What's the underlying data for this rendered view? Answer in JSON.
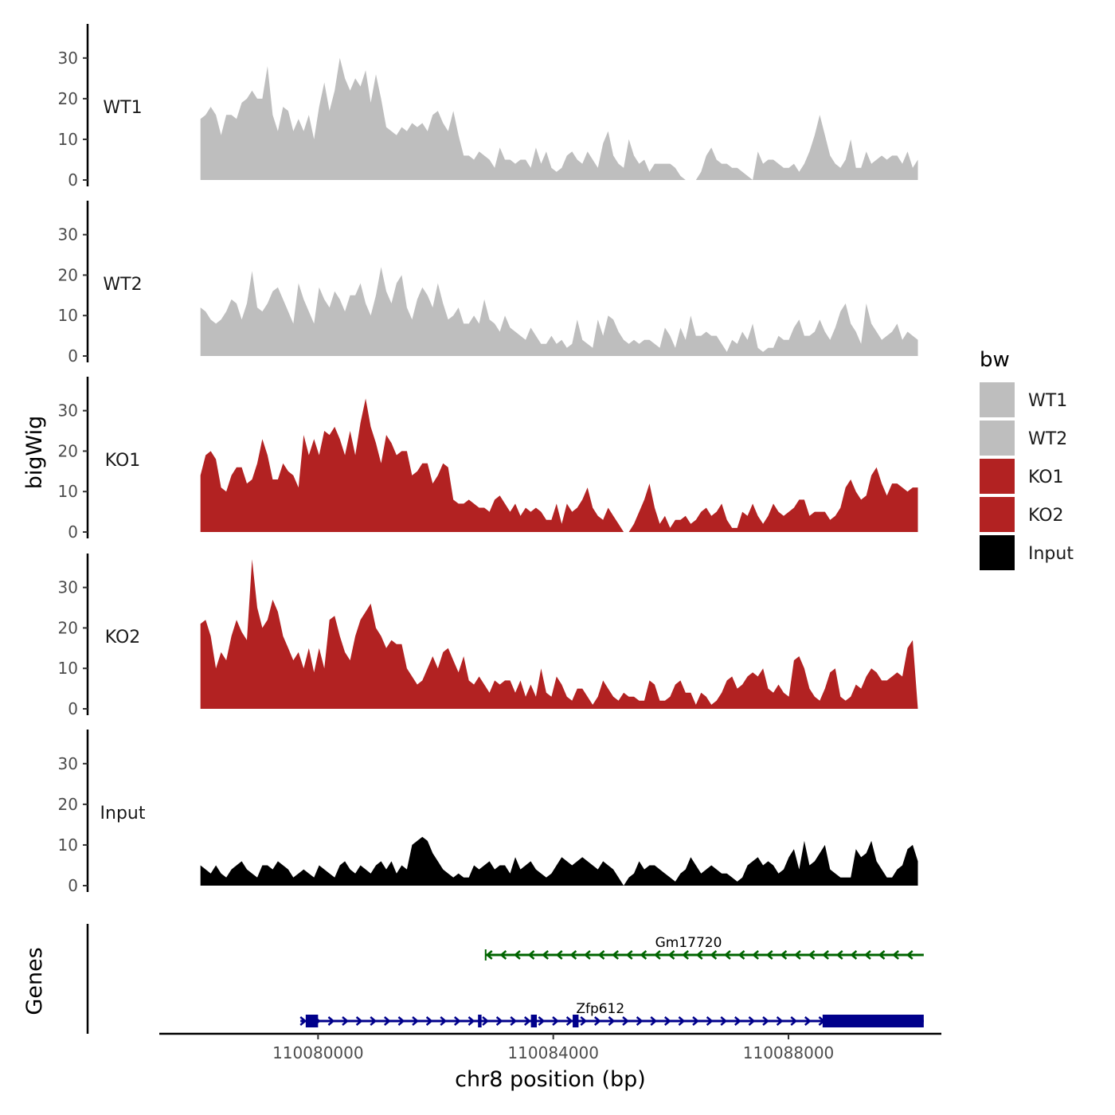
{
  "chart_data": {
    "type": "area",
    "title": "",
    "xlabel": "chr8 position (bp)",
    "ylabel": "bigWig",
    "genes_label": "Genes",
    "xlim": [
      110077300,
      110090600
    ],
    "x_start": 110078000,
    "x_end": 110090200,
    "ylim": [
      0,
      38
    ],
    "yticks": [
      0,
      10,
      20,
      30
    ],
    "xticks": [
      110080000,
      110084000,
      110088000
    ],
    "xtick_labels": [
      "110080000",
      "110084000",
      "110088000"
    ],
    "legend": {
      "title": "bw",
      "position": "right",
      "entries": [
        {
          "label": "WT1",
          "color": "#bebebe"
        },
        {
          "label": "WT2",
          "color": "#bebebe"
        },
        {
          "label": "KO1",
          "color": "#b22222"
        },
        {
          "label": "KO2",
          "color": "#b22222"
        },
        {
          "label": "Input",
          "color": "#000000"
        }
      ]
    },
    "series": [
      {
        "name": "WT1",
        "color": "#bebebe",
        "values": [
          15,
          16,
          18,
          16,
          11,
          16,
          16,
          15,
          19,
          20,
          22,
          20,
          20,
          28,
          16,
          12,
          18,
          17,
          12,
          15,
          12,
          16,
          10,
          18,
          24,
          17,
          22,
          30,
          25,
          22,
          25,
          23,
          27,
          19,
          26,
          20,
          13,
          12,
          11,
          13,
          12,
          14,
          13,
          14,
          12,
          16,
          17,
          14,
          12,
          17,
          11,
          6,
          6,
          5,
          7,
          6,
          5,
          3,
          8,
          5,
          5,
          4,
          5,
          5,
          3,
          8,
          4,
          7,
          3,
          2,
          3,
          6,
          7,
          5,
          4,
          7,
          5,
          3,
          9,
          12,
          6,
          4,
          3,
          10,
          6,
          4,
          5,
          2,
          4,
          4,
          4,
          4,
          3,
          1,
          0,
          0,
          0,
          2,
          6,
          8,
          5,
          4,
          4,
          3,
          3,
          2,
          1,
          0,
          7,
          4,
          5,
          5,
          4,
          3,
          3,
          4,
          2,
          4,
          7,
          11,
          16,
          11,
          6,
          4,
          3,
          5,
          10,
          3,
          3,
          7,
          4,
          5,
          6,
          5,
          6,
          6,
          4,
          7,
          3,
          5
        ]
      },
      {
        "name": "WT2",
        "color": "#bebebe",
        "values": [
          12,
          11,
          9,
          8,
          9,
          11,
          14,
          13,
          9,
          13,
          21,
          12,
          11,
          13,
          16,
          17,
          14,
          11,
          8,
          18,
          14,
          11,
          8,
          17,
          14,
          12,
          16,
          14,
          11,
          15,
          15,
          18,
          13,
          10,
          15,
          22,
          16,
          13,
          18,
          20,
          12,
          9,
          14,
          17,
          15,
          12,
          18,
          13,
          9,
          10,
          12,
          8,
          8,
          10,
          8,
          14,
          9,
          8,
          6,
          10,
          7,
          6,
          5,
          4,
          7,
          5,
          3,
          3,
          5,
          3,
          4,
          2,
          3,
          9,
          4,
          3,
          2,
          9,
          5,
          10,
          9,
          6,
          4,
          3,
          4,
          3,
          4,
          4,
          3,
          2,
          7,
          5,
          2,
          7,
          4,
          10,
          5,
          5,
          6,
          5,
          5,
          3,
          1,
          4,
          3,
          6,
          4,
          8,
          2,
          1,
          2,
          2,
          5,
          4,
          4,
          7,
          9,
          5,
          5,
          6,
          9,
          6,
          4,
          7,
          11,
          13,
          8,
          6,
          3,
          13,
          8,
          6,
          4,
          5,
          6,
          8,
          4,
          6,
          5,
          4
        ]
      },
      {
        "name": "KO1",
        "color": "#b22222",
        "values": [
          14,
          19,
          20,
          18,
          11,
          10,
          14,
          16,
          16,
          12,
          13,
          17,
          23,
          19,
          13,
          13,
          17,
          15,
          14,
          11,
          24,
          19,
          23,
          19,
          25,
          24,
          26,
          23,
          19,
          25,
          19,
          27,
          33,
          26,
          22,
          17,
          24,
          22,
          19,
          20,
          20,
          14,
          15,
          17,
          17,
          12,
          14,
          17,
          16,
          8,
          7,
          7,
          8,
          7,
          6,
          6,
          5,
          8,
          9,
          7,
          5,
          7,
          4,
          6,
          5,
          6,
          5,
          3,
          3,
          7,
          2,
          7,
          5,
          6,
          8,
          11,
          6,
          4,
          3,
          6,
          4,
          2,
          0,
          0,
          2,
          5,
          8,
          12,
          6,
          2,
          4,
          1,
          3,
          3,
          4,
          2,
          3,
          5,
          6,
          4,
          5,
          7,
          3,
          1,
          1,
          5,
          4,
          7,
          4,
          2,
          4,
          7,
          5,
          4,
          5,
          6,
          8,
          8,
          4,
          5,
          5,
          5,
          3,
          4,
          6,
          11,
          13,
          10,
          8,
          9,
          14,
          16,
          12,
          9,
          12,
          12,
          11,
          10,
          11,
          11
        ]
      },
      {
        "name": "KO2",
        "color": "#b22222",
        "values": [
          21,
          22,
          18,
          10,
          14,
          12,
          18,
          22,
          19,
          17,
          37,
          25,
          20,
          22,
          27,
          24,
          18,
          15,
          12,
          14,
          10,
          15,
          9,
          15,
          10,
          22,
          23,
          18,
          14,
          12,
          18,
          22,
          24,
          26,
          20,
          18,
          15,
          17,
          16,
          16,
          10,
          8,
          6,
          7,
          10,
          13,
          10,
          14,
          15,
          12,
          9,
          13,
          7,
          6,
          8,
          6,
          4,
          7,
          6,
          7,
          7,
          4,
          7,
          3,
          6,
          3,
          10,
          4,
          3,
          8,
          6,
          3,
          2,
          5,
          5,
          3,
          1,
          3,
          7,
          5,
          3,
          2,
          4,
          3,
          3,
          2,
          2,
          7,
          6,
          2,
          2,
          3,
          6,
          7,
          4,
          4,
          1,
          4,
          3,
          1,
          2,
          4,
          7,
          8,
          5,
          6,
          8,
          9,
          8,
          10,
          5,
          4,
          6,
          4,
          3,
          12,
          13,
          10,
          5,
          3,
          2,
          5,
          9,
          10,
          3,
          2,
          3,
          6,
          5,
          8,
          10,
          9,
          7,
          7,
          8,
          9,
          8,
          15,
          17,
          0
        ]
      },
      {
        "name": "Input",
        "color": "#000000",
        "values": [
          5,
          4,
          3,
          5,
          3,
          2,
          4,
          5,
          6,
          4,
          3,
          2,
          5,
          5,
          4,
          6,
          5,
          4,
          2,
          3,
          4,
          3,
          2,
          5,
          4,
          3,
          2,
          5,
          6,
          4,
          3,
          5,
          4,
          3,
          5,
          6,
          4,
          6,
          3,
          5,
          4,
          10,
          11,
          12,
          11,
          8,
          6,
          4,
          3,
          2,
          3,
          2,
          2,
          5,
          4,
          5,
          6,
          4,
          5,
          5,
          3,
          7,
          4,
          5,
          6,
          4,
          3,
          2,
          3,
          5,
          7,
          6,
          5,
          6,
          7,
          6,
          5,
          4,
          6,
          5,
          4,
          2,
          0,
          2,
          3,
          6,
          4,
          5,
          5,
          4,
          3,
          2,
          1,
          3,
          4,
          7,
          5,
          3,
          4,
          5,
          4,
          3,
          3,
          2,
          1,
          2,
          5,
          6,
          7,
          5,
          6,
          5,
          3,
          4,
          7,
          9,
          4,
          11,
          5,
          6,
          8,
          10,
          4,
          3,
          2,
          2,
          2,
          9,
          7,
          8,
          11,
          6,
          4,
          2,
          2,
          4,
          5,
          9,
          10,
          6
        ]
      }
    ],
    "genes": [
      {
        "name": "Gm17720",
        "color": "#006400",
        "start": 110082850,
        "end": 110090300,
        "strand": "-",
        "exons": []
      },
      {
        "name": "Zfp612",
        "color": "#00008b",
        "start": 110079700,
        "end": 110090300,
        "strand": "+",
        "exons": [
          [
            110079790,
            110080000
          ],
          [
            110082720,
            110082780
          ],
          [
            110083620,
            110083720
          ],
          [
            110084330,
            110084430
          ],
          [
            110088580,
            110090300
          ]
        ]
      }
    ]
  }
}
